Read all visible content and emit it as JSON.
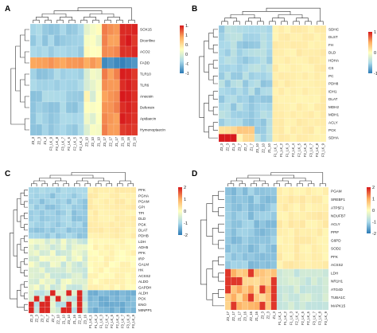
{
  "figure": {
    "panels": [
      {
        "label": "A",
        "rows": [
          "SOX15",
          "Diceriline",
          "ACO2",
          "FADD",
          "TLR10",
          "TLR6",
          "Aneesin",
          "Defensin",
          "Apidaecin",
          "Hymenoptaecin"
        ],
        "cols": [
          "Z3_3",
          "Z2_3",
          "Z1_3",
          "F3_LK_9",
          "F3_LK_8",
          "F3_LK_7",
          "F2_LK_6",
          "F2_LK_5",
          "F2_LK_4",
          "Z3_10",
          "Z2_10",
          "Z1_10",
          "Z3_17",
          "Z2_17",
          "Z1_17",
          "Z1_16",
          "Z2_16",
          "Z3_16"
        ],
        "legend_ticks": [
          "1.5",
          "1",
          "0.5",
          "0",
          "-0.5",
          "-1"
        ],
        "pattern": "A"
      },
      {
        "label": "B",
        "rows": [
          "SDHC",
          "DLST",
          "FH",
          "DLD",
          "HDHA",
          "CS",
          "PC",
          "PDH8",
          "IDH1",
          "DLAT",
          "MDH2",
          "MDH1",
          "ACLY",
          "PCK",
          "SDHA"
        ],
        "cols": [
          "Z3_3",
          "Z2_3",
          "Z1_3",
          "Z3_7",
          "Z2_7",
          "Z1_7",
          "Z3_10",
          "Z2_10",
          "Z1_10",
          "F1_LK_1",
          "F1_LK_2",
          "F1_LK_3",
          "F2_LK_4",
          "F2_LK_5",
          "F2_LK_6",
          "F3_LK_7",
          "F3_LK_8",
          "F3_LK_9"
        ],
        "legend_ticks": [
          "1",
          "0",
          "-1"
        ],
        "pattern": "B"
      },
      {
        "label": "C",
        "rows": [
          "PFK",
          "PGHA",
          "PGAM",
          "GPI",
          "TPI",
          "DLD",
          "PGK",
          "DLAT",
          "PDHB",
          "LDH",
          "ADH5",
          "PFK",
          "IRP",
          "GALM",
          "HK",
          "ACSS2",
          "ALDO",
          "GAPDH",
          "ALDH",
          "PCK",
          "ENO",
          "MINPP1"
        ],
        "cols": [
          "Z2_3",
          "Z2_3",
          "Z3_7",
          "Z1_7",
          "Z2_7",
          "Z2_10",
          "Z1_10",
          "Z3_10",
          "Z1_16",
          "Z2_16",
          "Z3_16",
          "F1_LK_1",
          "F1_LK_2",
          "F1_LK_3",
          "F2_LK_4",
          "F2_LK_5",
          "F2_LK_6",
          "F3_LK_7",
          "F3_LK_8",
          "F3_LK_9"
        ],
        "legend_ticks": [
          "2",
          "1",
          "0",
          "-1",
          "-2"
        ],
        "pattern": "C"
      },
      {
        "label": "D",
        "rows": [
          "PGAM",
          "SREBF1",
          "ATP5F1",
          "NDUFB7",
          "ACLY",
          "PPIF",
          "G6PD",
          "SOD2",
          "PFK",
          "ACSS2",
          "LDH",
          "NR1H1",
          "ATG4D",
          "TUBA1C",
          "MAPK15"
        ],
        "cols": [
          "Z3_17",
          "Z2_17",
          "Z1_17",
          "Z3_16",
          "Z2_16",
          "Z1_16",
          "Z3_3",
          "Z2_3",
          "Z1_3",
          "F1_LK_1",
          "F1_LK_2",
          "F1_LK_3",
          "F2_LK_4",
          "F2_LK_5",
          "F2_LK_6",
          "F3_LK_7",
          "F3_LK_8",
          "F3_LK_9"
        ],
        "legend_ticks": [
          "2",
          "1",
          "0",
          "-1",
          "-2"
        ],
        "pattern": "D"
      }
    ],
    "colors": {
      "low": "#2c7bb6",
      "mid_low": "#abd9e9",
      "mid": "#ffffbf",
      "mid_high": "#fdae61",
      "high": "#d7191c"
    }
  }
}
